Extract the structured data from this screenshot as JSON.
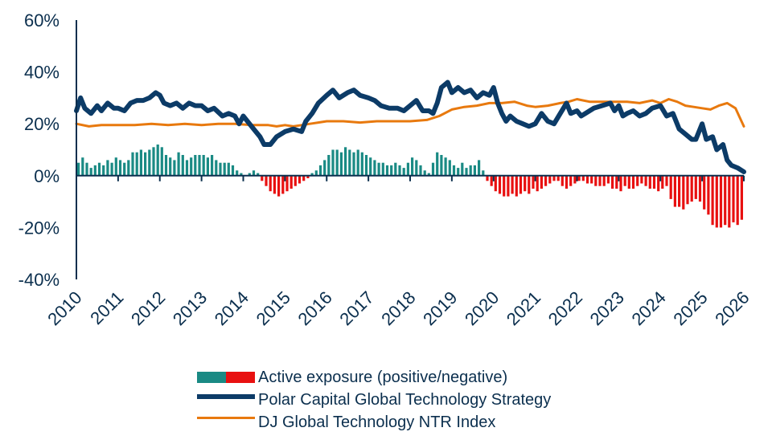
{
  "chart_data": {
    "type": "bar+line",
    "title": "",
    "xlabel": "",
    "ylabel": "",
    "ylim": [
      -40,
      60
    ],
    "yticks": [
      -40,
      -20,
      0,
      20,
      40,
      60
    ],
    "ytick_labels": [
      "-40%",
      "-20%",
      "0%",
      "20%",
      "40%",
      "60%"
    ],
    "xlim": [
      2010,
      2026
    ],
    "xticks": [
      2010,
      2011,
      2012,
      2013,
      2014,
      2015,
      2016,
      2017,
      2018,
      2019,
      2020,
      2021,
      2022,
      2023,
      2024,
      2025,
      2026
    ],
    "xtick_labels": [
      "2010",
      "2011",
      "2012",
      "2013",
      "2014",
      "2015",
      "2016",
      "2017",
      "2018",
      "2019",
      "2020",
      "2021",
      "2022",
      "2023",
      "2024",
      "2025",
      "2026"
    ],
    "legend_position": "bottom",
    "colors": {
      "axis": "#0b2f4e",
      "strategy": "#0c3b67",
      "index": "#e8790e",
      "positive": "#1a8a84",
      "negative": "#e81010"
    },
    "series": [
      {
        "name": "Polar Capital Global Technology Strategy",
        "kind": "line",
        "x": [
          2010.0,
          2010.1,
          2010.2,
          2010.35,
          2010.5,
          2010.6,
          2010.75,
          2010.9,
          2011.0,
          2011.15,
          2011.3,
          2011.45,
          2011.6,
          2011.75,
          2011.9,
          2012.0,
          2012.1,
          2012.25,
          2012.4,
          2012.55,
          2012.7,
          2012.85,
          2013.0,
          2013.15,
          2013.3,
          2013.5,
          2013.65,
          2013.8,
          2013.9,
          2014.0,
          2014.1,
          2014.25,
          2014.4,
          2014.5,
          2014.65,
          2014.8,
          2015.0,
          2015.2,
          2015.4,
          2015.5,
          2015.65,
          2015.8,
          2016.0,
          2016.15,
          2016.3,
          2016.5,
          2016.65,
          2016.8,
          2017.0,
          2017.15,
          2017.3,
          2017.5,
          2017.7,
          2017.85,
          2018.0,
          2018.15,
          2018.3,
          2018.45,
          2018.55,
          2018.65,
          2018.75,
          2018.9,
          2019.0,
          2019.15,
          2019.3,
          2019.45,
          2019.6,
          2019.75,
          2019.9,
          2020.0,
          2020.1,
          2020.2,
          2020.3,
          2020.4,
          2020.55,
          2020.7,
          2020.85,
          2021.0,
          2021.15,
          2021.3,
          2021.45,
          2021.6,
          2021.75,
          2021.85,
          2022.0,
          2022.1,
          2022.2,
          2022.4,
          2022.6,
          2022.8,
          2022.9,
          2023.0,
          2023.1,
          2023.2,
          2023.35,
          2023.5,
          2023.65,
          2023.8,
          2024.0,
          2024.15,
          2024.3,
          2024.45,
          2024.6,
          2024.75,
          2024.85,
          2025.0,
          2025.1,
          2025.25,
          2025.35,
          2025.5,
          2025.6,
          2025.7,
          2025.85,
          2026.0
        ],
        "values": [
          25,
          30,
          26,
          24,
          27,
          25,
          28,
          26,
          26,
          25,
          28,
          29,
          29,
          30,
          32,
          31,
          28,
          27,
          28,
          26,
          28,
          27,
          27,
          25,
          26,
          23,
          24,
          23,
          20,
          23,
          21,
          18,
          15,
          12,
          12,
          15,
          17,
          18,
          17,
          21,
          24,
          28,
          31,
          33,
          30,
          32,
          33,
          31,
          30,
          29,
          27,
          26,
          26,
          25,
          27,
          29,
          25,
          25,
          24,
          28,
          34,
          36,
          32,
          34,
          32,
          33,
          30,
          32,
          31,
          34,
          28,
          24,
          21,
          23,
          21,
          20,
          19,
          20,
          24,
          21,
          20,
          24,
          28,
          24,
          25,
          23,
          24,
          26,
          27,
          28,
          25,
          27,
          23,
          24,
          25,
          23,
          24,
          26,
          27,
          23,
          24,
          18,
          16,
          14,
          14,
          20,
          14,
          15,
          10,
          12,
          6,
          4,
          3,
          1.5
        ]
      },
      {
        "name": "DJ Global Technology NTR Index",
        "kind": "line",
        "x": [
          2010.0,
          2010.3,
          2010.6,
          2011.0,
          2011.4,
          2011.8,
          2012.2,
          2012.6,
          2013.0,
          2013.4,
          2013.8,
          2014.2,
          2014.6,
          2014.8,
          2015.0,
          2015.2,
          2015.4,
          2015.6,
          2015.8,
          2016.0,
          2016.4,
          2016.8,
          2017.2,
          2017.6,
          2018.0,
          2018.4,
          2018.7,
          2019.0,
          2019.3,
          2019.6,
          2019.9,
          2020.2,
          2020.5,
          2020.8,
          2021.0,
          2021.3,
          2021.6,
          2021.8,
          2022.0,
          2022.3,
          2022.6,
          2022.9,
          2023.2,
          2023.5,
          2023.8,
          2024.0,
          2024.2,
          2024.4,
          2024.6,
          2024.8,
          2025.0,
          2025.2,
          2025.4,
          2025.6,
          2025.8,
          2025.9,
          2026.0
        ],
        "values": [
          20,
          19,
          19.5,
          19.5,
          19.5,
          20,
          19.5,
          20,
          19.5,
          20,
          20,
          19.5,
          19.5,
          19,
          19.5,
          19,
          19.5,
          20,
          20.5,
          21,
          21,
          20.5,
          21,
          21,
          21,
          21.5,
          23,
          25.5,
          26.5,
          27,
          28,
          28,
          28.5,
          27,
          26.5,
          27,
          28,
          28.5,
          29.5,
          28.5,
          28.5,
          28.5,
          28.5,
          28,
          29,
          28,
          29.5,
          28.5,
          27,
          26.5,
          26,
          25.5,
          27,
          28,
          26,
          22.5,
          19
        ]
      },
      {
        "name": "Active exposure (positive/negative)",
        "kind": "bar",
        "x": [
          2010.05,
          2010.15,
          2010.25,
          2010.35,
          2010.45,
          2010.55,
          2010.65,
          2010.75,
          2010.85,
          2010.95,
          2011.05,
          2011.15,
          2011.25,
          2011.35,
          2011.45,
          2011.55,
          2011.65,
          2011.75,
          2011.85,
          2011.95,
          2012.05,
          2012.15,
          2012.25,
          2012.35,
          2012.45,
          2012.55,
          2012.65,
          2012.75,
          2012.85,
          2012.95,
          2013.05,
          2013.15,
          2013.25,
          2013.35,
          2013.45,
          2013.55,
          2013.65,
          2013.75,
          2013.85,
          2013.95,
          2014.05,
          2014.15,
          2014.25,
          2014.35,
          2014.45,
          2014.55,
          2014.65,
          2014.75,
          2014.85,
          2014.95,
          2015.05,
          2015.15,
          2015.25,
          2015.35,
          2015.45,
          2015.55,
          2015.65,
          2015.75,
          2015.85,
          2015.95,
          2016.05,
          2016.15,
          2016.25,
          2016.35,
          2016.45,
          2016.55,
          2016.65,
          2016.75,
          2016.85,
          2016.95,
          2017.05,
          2017.15,
          2017.25,
          2017.35,
          2017.45,
          2017.55,
          2017.65,
          2017.75,
          2017.85,
          2017.95,
          2018.05,
          2018.15,
          2018.25,
          2018.35,
          2018.45,
          2018.55,
          2018.65,
          2018.75,
          2018.85,
          2018.95,
          2019.05,
          2019.15,
          2019.25,
          2019.35,
          2019.45,
          2019.55,
          2019.65,
          2019.75,
          2019.85,
          2019.95,
          2020.05,
          2020.15,
          2020.25,
          2020.35,
          2020.45,
          2020.55,
          2020.65,
          2020.75,
          2020.85,
          2020.95,
          2021.05,
          2021.15,
          2021.25,
          2021.35,
          2021.45,
          2021.55,
          2021.65,
          2021.75,
          2021.85,
          2021.95,
          2022.05,
          2022.15,
          2022.25,
          2022.35,
          2022.45,
          2022.55,
          2022.65,
          2022.75,
          2022.85,
          2022.95,
          2023.05,
          2023.15,
          2023.25,
          2023.35,
          2023.45,
          2023.55,
          2023.65,
          2023.75,
          2023.85,
          2023.95,
          2024.05,
          2024.15,
          2024.25,
          2024.35,
          2024.45,
          2024.55,
          2024.65,
          2024.75,
          2024.85,
          2024.95,
          2025.05,
          2025.15,
          2025.25,
          2025.35,
          2025.45,
          2025.55,
          2025.65,
          2025.75,
          2025.85,
          2025.95
        ],
        "values": [
          5,
          7,
          5,
          3,
          4,
          5,
          4,
          6,
          5,
          7,
          6,
          5,
          6,
          9,
          9,
          10,
          9,
          10,
          11,
          12,
          11,
          8,
          7,
          6,
          9,
          8,
          6,
          7,
          8,
          8,
          8,
          7,
          8,
          6,
          5,
          5,
          5,
          4,
          2,
          1,
          0,
          1,
          2,
          1,
          -2,
          -4,
          -6,
          -7,
          -8,
          -7,
          -6,
          -5,
          -4,
          -3,
          -2,
          -1,
          1,
          2,
          4,
          6,
          8,
          10,
          10,
          9,
          11,
          10,
          9,
          10,
          9,
          8,
          7,
          6,
          5,
          5,
          4,
          4,
          5,
          4,
          3,
          5,
          7,
          6,
          4,
          2,
          1,
          5,
          9,
          8,
          7,
          6,
          4,
          3,
          5,
          3,
          4,
          4,
          6,
          2,
          -2,
          -4,
          -6,
          -7,
          -8,
          -8,
          -7,
          -8,
          -7,
          -6,
          -7,
          -5,
          -6,
          -5,
          -4,
          -3,
          -2,
          -2,
          -4,
          -5,
          -4,
          -3,
          -2,
          -2,
          -3,
          -3,
          -4,
          -4,
          -4,
          -3,
          -5,
          -5,
          -6,
          -4,
          -5,
          -5,
          -4,
          -3,
          -4,
          -5,
          -5,
          -6,
          -5,
          -4,
          -9,
          -12,
          -12,
          -13,
          -11,
          -10,
          -9,
          -10,
          -13,
          -15,
          -19,
          -20,
          -20,
          -19,
          -20,
          -18,
          -19,
          -17
        ]
      }
    ]
  }
}
